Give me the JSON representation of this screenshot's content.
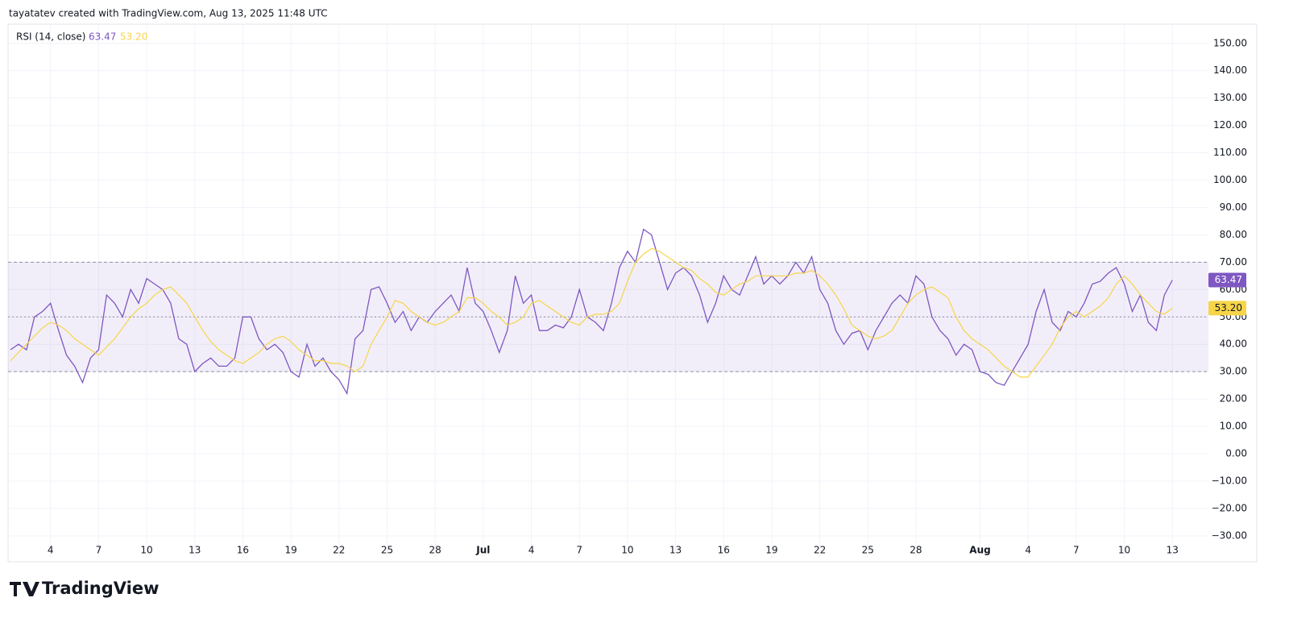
{
  "header": "tayatatev created with TradingView.com, Aug 13, 2025 11:48 UTC",
  "logo": "TradingView",
  "chart_data": {
    "type": "line",
    "title": "RSI (14, close)",
    "xlim": [
      -0.3,
      149.5
    ],
    "xticks": [
      {
        "value": 5,
        "label": "4"
      },
      {
        "value": 11,
        "label": "7"
      },
      {
        "value": 17,
        "label": "10"
      },
      {
        "value": 23,
        "label": "13"
      },
      {
        "value": 29,
        "label": "16"
      },
      {
        "value": 35,
        "label": "19"
      },
      {
        "value": 41,
        "label": "22"
      },
      {
        "value": 47,
        "label": "25"
      },
      {
        "value": 53,
        "label": "28"
      },
      {
        "value": 59,
        "label": "Jul"
      },
      {
        "value": 65,
        "label": "4"
      },
      {
        "value": 71,
        "label": "7"
      },
      {
        "value": 77,
        "label": "10"
      },
      {
        "value": 83,
        "label": "13"
      },
      {
        "value": 89,
        "label": "16"
      },
      {
        "value": 95,
        "label": "19"
      },
      {
        "value": 101,
        "label": "22"
      },
      {
        "value": 107,
        "label": "25"
      },
      {
        "value": 113,
        "label": "28"
      },
      {
        "value": 121,
        "label": "Aug"
      },
      {
        "value": 127,
        "label": "4"
      },
      {
        "value": 133,
        "label": "7"
      },
      {
        "value": 139,
        "label": "10"
      },
      {
        "value": 145,
        "label": "13"
      }
    ],
    "ylim": [
      -38,
      157
    ],
    "yticks": [
      {
        "value": -30,
        "label": "−30.00"
      },
      {
        "value": -20,
        "label": "−20.00"
      },
      {
        "value": -10,
        "label": "−10.00"
      },
      {
        "value": 0,
        "label": "0.00"
      },
      {
        "value": 10,
        "label": "10.00"
      },
      {
        "value": 20,
        "label": "20.00"
      },
      {
        "value": 30,
        "label": "30.00"
      },
      {
        "value": 40,
        "label": "40.00"
      },
      {
        "value": 50,
        "label": "50.00"
      },
      {
        "value": 60,
        "label": "60.00"
      },
      {
        "value": 70,
        "label": "70.00"
      },
      {
        "value": 80,
        "label": "80.00"
      },
      {
        "value": 90,
        "label": "90.00"
      },
      {
        "value": 100,
        "label": "100.00"
      },
      {
        "value": 110,
        "label": "110.00"
      },
      {
        "value": 120,
        "label": "120.00"
      },
      {
        "value": 130,
        "label": "130.00"
      },
      {
        "value": 140,
        "label": "140.00"
      },
      {
        "value": 150,
        "label": "150.00"
      }
    ],
    "grid": true,
    "bands": {
      "upper": 70,
      "middle": 50,
      "lower": 30,
      "color": "#7e57c2"
    },
    "series": [
      {
        "color": "#7e57c2",
        "last_value": {
          "value": 63.47,
          "label": "63.47"
        },
        "values": [
          38,
          40,
          38,
          50,
          52,
          55,
          45,
          36,
          32,
          26,
          35,
          38,
          58,
          55,
          50,
          60,
          55,
          64,
          62,
          60,
          55,
          42,
          40,
          30,
          33,
          35,
          32,
          32,
          35,
          50,
          50,
          42,
          38,
          40,
          37,
          30,
          28,
          40,
          32,
          35,
          30,
          27,
          22,
          42,
          45,
          60,
          61,
          55,
          48,
          52,
          45,
          50,
          48,
          52,
          55,
          58,
          52,
          68,
          55,
          52,
          45,
          37,
          45,
          65,
          55,
          58,
          45,
          45,
          47,
          46,
          50,
          60,
          50,
          48,
          45,
          55,
          68,
          74,
          70,
          82,
          80,
          70,
          60,
          66,
          68,
          65,
          58,
          48,
          55,
          65,
          60,
          58,
          65,
          72,
          62,
          65,
          62,
          65,
          70,
          66,
          72,
          60,
          55,
          45,
          40,
          44,
          45,
          38,
          45,
          50,
          55,
          58,
          55,
          65,
          62,
          50,
          45,
          42,
          36,
          40,
          38,
          30,
          29,
          26,
          25,
          30,
          35,
          40,
          52,
          60,
          48,
          45,
          52,
          50,
          55,
          62,
          63,
          66,
          68,
          62,
          52,
          58,
          48,
          45,
          58,
          63.47
        ]
      },
      {
        "color": "#f7d548",
        "last_value": {
          "value": 53.2,
          "label": "53.20"
        },
        "values": [
          34,
          37,
          40,
          43,
          46,
          48,
          47,
          45,
          42,
          40,
          38,
          36,
          39,
          42,
          46,
          50,
          53,
          55,
          58,
          60,
          61,
          58,
          55,
          50,
          45,
          41,
          38,
          36,
          34,
          33,
          35,
          37,
          40,
          42,
          43,
          41,
          38,
          36,
          34,
          34,
          33,
          33,
          32,
          30,
          32,
          40,
          45,
          50,
          56,
          55,
          52,
          50,
          48,
          47,
          48,
          50,
          52,
          57,
          57,
          55,
          52,
          50,
          47,
          48,
          50,
          55,
          56,
          54,
          52,
          50,
          48,
          47,
          50,
          51,
          51,
          52,
          55,
          63,
          70,
          73,
          75,
          74,
          72,
          70,
          68,
          67,
          64,
          62,
          59,
          58,
          60,
          62,
          63,
          65,
          65,
          65,
          65,
          65,
          66,
          66,
          67,
          65,
          62,
          58,
          53,
          47,
          45,
          43,
          42,
          43,
          45,
          50,
          55,
          58,
          60,
          61,
          59,
          57,
          50,
          45,
          42,
          40,
          38,
          35,
          32,
          30,
          28,
          28,
          32,
          36,
          40,
          46,
          50,
          52,
          50,
          52,
          54,
          57,
          62,
          65,
          62,
          58,
          55,
          52,
          51,
          53.2
        ]
      }
    ]
  }
}
